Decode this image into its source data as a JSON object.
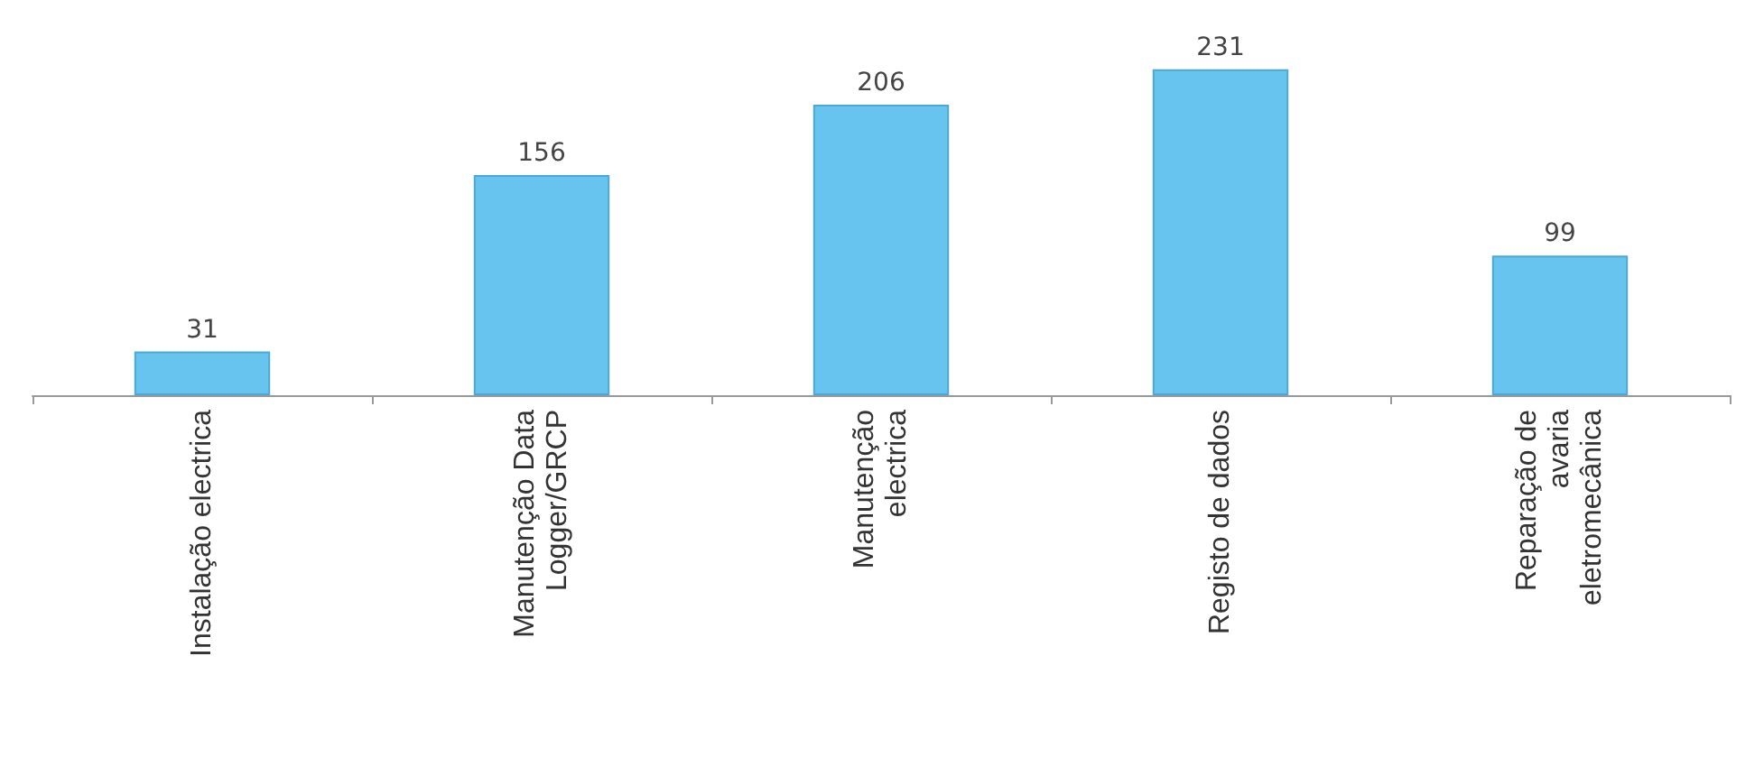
{
  "chart_data": {
    "type": "bar",
    "categories": [
      "Instalação electrica",
      "Manutenção Data\nLogger/GRCP",
      "Manutenção\nelectrica",
      "Registo de dados",
      "Reparação de\navaria\neletromecânica"
    ],
    "values": [
      31,
      156,
      206,
      231,
      99
    ],
    "color": "#66c4ee",
    "data_labels": true
  }
}
